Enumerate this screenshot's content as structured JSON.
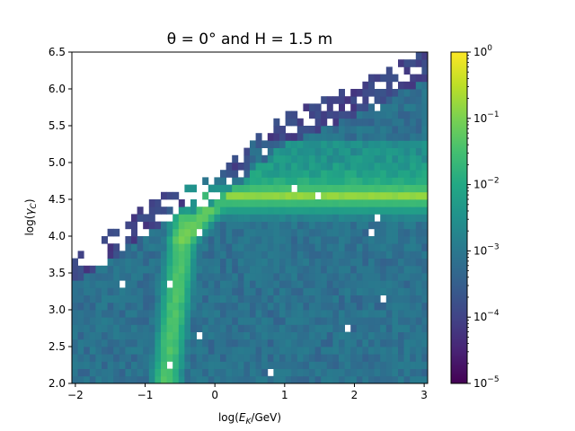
{
  "chart_data": {
    "type": "heatmap",
    "title": "θ = 0° and H = 1.5 m",
    "xlabel": "log(E_K/GeV)",
    "ylabel": "log(γ_C)",
    "xlim": [
      -2.05,
      3.05
    ],
    "ylim": [
      2.0,
      6.5
    ],
    "x_ticks": [
      -2,
      -1,
      0,
      1,
      2,
      3
    ],
    "x_tick_labels": [
      "−2",
      "−1",
      "0",
      "1",
      "2",
      "3"
    ],
    "y_ticks": [
      2.0,
      2.5,
      3.0,
      3.5,
      4.0,
      4.5,
      5.0,
      5.5,
      6.0,
      6.5
    ],
    "y_tick_labels": [
      "2.0",
      "2.5",
      "3.0",
      "3.5",
      "4.0",
      "4.5",
      "5.0",
      "5.5",
      "6.0",
      "6.5"
    ],
    "bins": {
      "x_count": 60,
      "y_count": 45
    },
    "colorbar": {
      "scale": "log",
      "colormap": "viridis",
      "range": [
        1e-05,
        1
      ],
      "ticks": [
        1e-05,
        0.0001,
        0.001,
        0.01,
        0.1,
        1
      ],
      "tick_labels": [
        "10",
        "10",
        "10",
        "10",
        "10",
        "10"
      ],
      "tick_exponents": [
        "−5",
        "−4",
        "−3",
        "−2",
        "−1",
        "0"
      ]
    },
    "features": {
      "horizontal_ridge": {
        "y": 4.55,
        "x_range": [
          -0.4,
          3.05
        ],
        "peak_density": 0.15
      },
      "vertical_ridge": {
        "x": -0.7,
        "y_range": [
          2.0,
          4.3
        ],
        "peak_density": 0.05
      },
      "background_density": 0.001,
      "upper_boundary": [
        [
          -2.05,
          3.7
        ],
        [
          -0.6,
          4.6
        ],
        [
          0.0,
          4.8
        ],
        [
          1.0,
          5.6
        ],
        [
          2.0,
          6.0
        ],
        [
          3.05,
          6.5
        ]
      ]
    }
  }
}
